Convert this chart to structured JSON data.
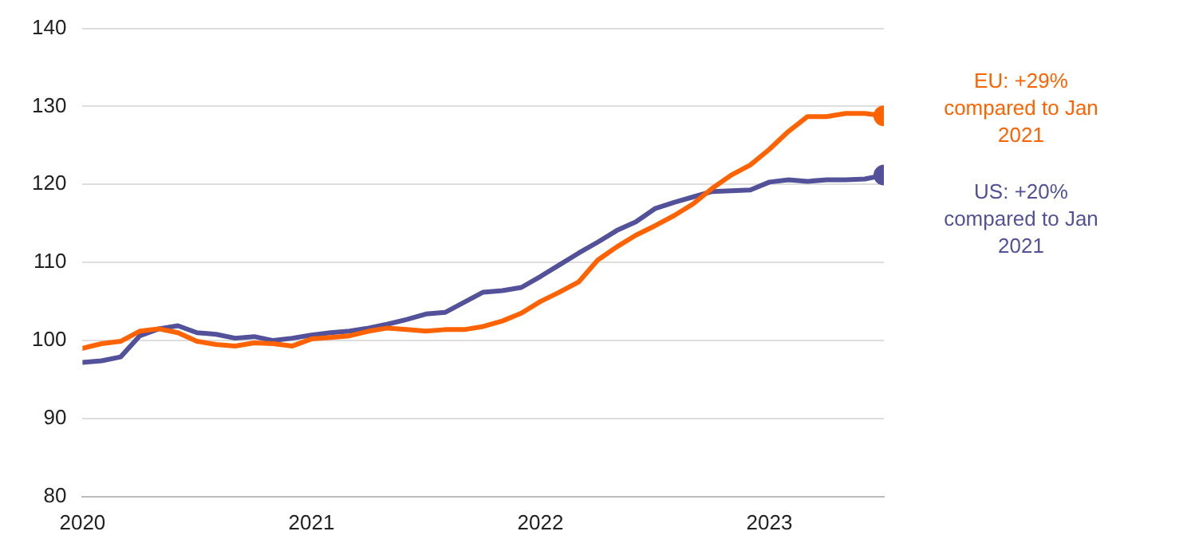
{
  "chart_data": {
    "type": "line",
    "x": [
      "2020-01",
      "2020-02",
      "2020-03",
      "2020-04",
      "2020-05",
      "2020-06",
      "2020-07",
      "2020-08",
      "2020-09",
      "2020-10",
      "2020-11",
      "2020-12",
      "2021-01",
      "2021-02",
      "2021-03",
      "2021-04",
      "2021-05",
      "2021-06",
      "2021-07",
      "2021-08",
      "2021-09",
      "2021-10",
      "2021-11",
      "2021-12",
      "2022-01",
      "2022-02",
      "2022-03",
      "2022-04",
      "2022-05",
      "2022-06",
      "2022-07",
      "2022-08",
      "2022-09",
      "2022-10",
      "2022-11",
      "2022-12",
      "2023-01",
      "2023-02",
      "2023-03",
      "2023-04",
      "2023-05",
      "2023-06",
      "2023-07"
    ],
    "series": [
      {
        "name": "EU: +29% compared to Jan 2021",
        "color": "#ff6200",
        "values": [
          99.0,
          99.6,
          99.9,
          101.2,
          101.5,
          101.0,
          99.9,
          99.5,
          99.3,
          99.7,
          99.6,
          99.3,
          100.2,
          100.4,
          100.6,
          101.2,
          101.6,
          101.4,
          101.2,
          101.4,
          101.4,
          101.8,
          102.5,
          103.5,
          105.0,
          106.2,
          107.5,
          110.3,
          112.0,
          113.5,
          114.7,
          116.0,
          117.5,
          119.5,
          121.2,
          122.5,
          124.5,
          126.8,
          128.7,
          128.7,
          129.1,
          129.1,
          128.8
        ]
      },
      {
        "name": "US: +20% compared to Jan 2021",
        "color": "#525199",
        "values": [
          97.2,
          97.4,
          97.9,
          100.6,
          101.5,
          101.9,
          101.0,
          100.8,
          100.3,
          100.5,
          100.0,
          100.3,
          100.7,
          101.0,
          101.2,
          101.6,
          102.1,
          102.7,
          103.4,
          103.6,
          104.9,
          106.2,
          106.4,
          106.8,
          108.2,
          109.7,
          111.2,
          112.6,
          114.1,
          115.2,
          116.9,
          117.7,
          118.4,
          119.1,
          119.2,
          119.3,
          120.3,
          120.6,
          120.4,
          120.6,
          120.6,
          120.7,
          121.2
        ]
      }
    ],
    "xlim": [
      "2020-01",
      "2023-07"
    ],
    "xticks": [
      "2020",
      "2021",
      "2022",
      "2023"
    ],
    "ylim": [
      80,
      140
    ],
    "yticks": [
      80,
      90,
      100,
      110,
      120,
      130,
      140
    ],
    "grid": "y",
    "legend": false,
    "line_style": "solid"
  }
}
